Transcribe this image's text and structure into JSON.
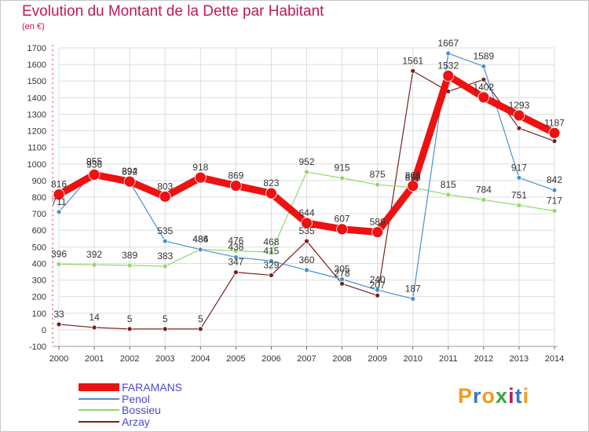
{
  "title": "Evolution du Montant de la Dette par Habitant",
  "subtitle": "(en €)",
  "logo": {
    "text": "Proxiti",
    "letter_colors": [
      "#f29a21",
      "#3a78c3",
      "#f29a21",
      "#3aa642",
      "#c2185b",
      "#3a78c3",
      "#f29a21"
    ]
  },
  "chart_data": {
    "type": "line",
    "x": [
      "2000",
      "2001",
      "2002",
      "2003",
      "2004",
      "2005",
      "2006",
      "2007",
      "2008",
      "2009",
      "2010",
      "2011",
      "2012",
      "2013",
      "2014"
    ],
    "ylim": [
      -100,
      1700
    ],
    "yticks": [
      -100,
      0,
      100,
      200,
      300,
      400,
      500,
      600,
      700,
      800,
      900,
      1000,
      1100,
      1200,
      1300,
      1400,
      1500,
      1600,
      1700
    ],
    "grid": true,
    "legend_position": "bottom-left",
    "series": [
      {
        "name": "Arzay",
        "color": "#7a1f1f",
        "values": [
          33,
          14,
          5,
          5,
          5,
          347,
          329,
          535,
          278,
          207,
          1561,
          1438,
          1509,
          1216,
          1138
        ],
        "labels": [
          "33",
          "14",
          "5",
          "5",
          "5",
          "347",
          "329",
          "535",
          "278",
          "207",
          "1561",
          "",
          "",
          "",
          ""
        ]
      },
      {
        "name": "Bossieu",
        "color": "#90d86a",
        "values": [
          396,
          392,
          389,
          383,
          486,
          476,
          468,
          952,
          915,
          875,
          858,
          815,
          784,
          751,
          717
        ],
        "labels": [
          "396",
          "392",
          "389",
          "383",
          "486",
          "476",
          "468",
          "952",
          "915",
          "875",
          "858",
          "815",
          "784",
          "751",
          "717"
        ]
      },
      {
        "name": "Penol",
        "color": "#4a90d0",
        "values": [
          711,
          955,
          892,
          535,
          484,
          438,
          415,
          360,
          305,
          240,
          187,
          1667,
          1589,
          917,
          842
        ],
        "labels": [
          "711",
          "955",
          "892",
          "535",
          "484",
          "438",
          "415",
          "360",
          "305",
          "240",
          "187",
          "1667",
          "1589",
          "917",
          "842"
        ]
      },
      {
        "name": "FARAMANS",
        "color": "#ee1111",
        "values": [
          816,
          936,
          894,
          803,
          918,
          869,
          823,
          644,
          607,
          589,
          868,
          1532,
          1402,
          1293,
          1187
        ],
        "labels": [
          "816",
          "936",
          "894",
          "803",
          "918",
          "869",
          "823",
          "644",
          "607",
          "589",
          "868",
          "1532",
          "1402",
          "1293",
          "1187"
        ]
      }
    ],
    "legend_order": [
      "FARAMANS",
      "Penol",
      "Bossieu",
      "Arzay"
    ]
  }
}
